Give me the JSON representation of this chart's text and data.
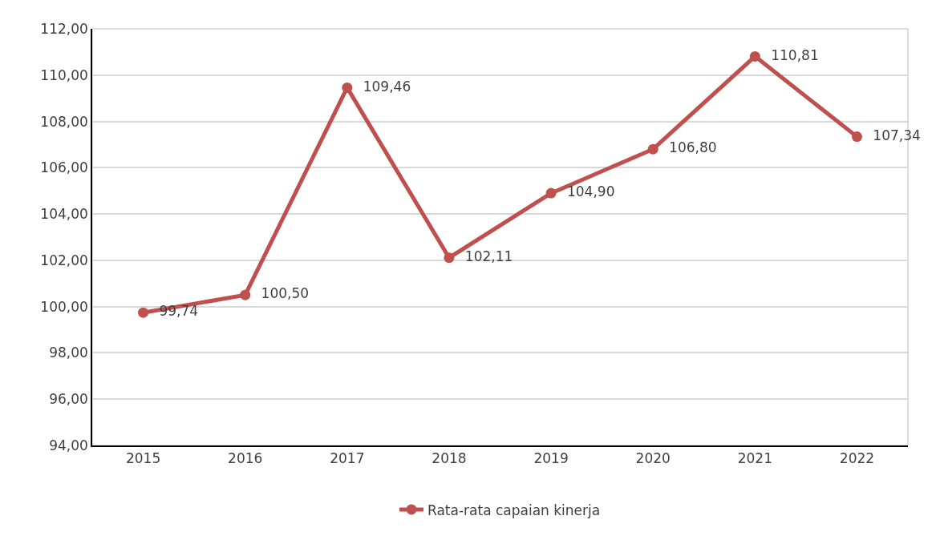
{
  "chart_data": {
    "type": "line",
    "categories": [
      "2015",
      "2016",
      "2017",
      "2018",
      "2019",
      "2020",
      "2021",
      "2022"
    ],
    "series": [
      {
        "name": "Rata-rata capaian kinerja",
        "color": "#c0504d",
        "values": [
          99.74,
          100.5,
          109.46,
          102.11,
          104.9,
          106.8,
          110.81,
          107.34
        ],
        "value_labels": [
          "99,74",
          "100,50",
          "109,46",
          "102,11",
          "104,90",
          "106,80",
          "110,81",
          "107,34"
        ]
      }
    ],
    "ylim": [
      94,
      112
    ],
    "yticks": [
      {
        "value": 94,
        "label": "94,00"
      },
      {
        "value": 96,
        "label": "96,00"
      },
      {
        "value": 98,
        "label": "98,00"
      },
      {
        "value": 100,
        "label": "100,00"
      },
      {
        "value": 102,
        "label": "102,00"
      },
      {
        "value": 104,
        "label": "104,00"
      },
      {
        "value": 106,
        "label": "106,00"
      },
      {
        "value": 108,
        "label": "108,00"
      },
      {
        "value": 110,
        "label": "110,00"
      },
      {
        "value": 112,
        "label": "112,00"
      }
    ],
    "grid": "y",
    "legend": "bottom",
    "marker": "circle",
    "line_style": "solid"
  }
}
